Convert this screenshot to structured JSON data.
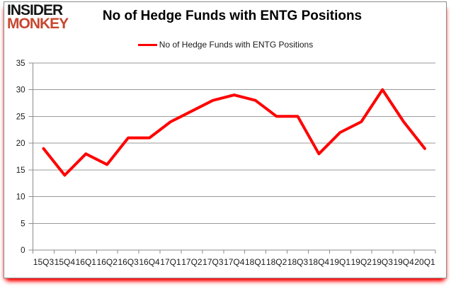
{
  "logo": {
    "line1": "INSIDER",
    "line2": "MONKEY",
    "line1_color": "#141414",
    "line2_color": "#C8472F"
  },
  "title": "No of Hedge Funds with ENTG Positions",
  "legend": {
    "label": "No of Hedge Funds with ENTG Positions",
    "line_color": "#FF0000"
  },
  "frame": {
    "border_color": "#8C8C8C",
    "glow_color": "#FF0000",
    "background": "#FFFFFF"
  },
  "chart_data": {
    "type": "line",
    "title": "No of Hedge Funds with ENTG Positions",
    "categories": [
      "15Q3",
      "15Q4",
      "16Q1",
      "16Q2",
      "16Q3",
      "16Q4",
      "17Q1",
      "17Q2",
      "17Q3",
      "17Q4",
      "18Q1",
      "18Q2",
      "18Q3",
      "18Q4",
      "19Q1",
      "19Q2",
      "19Q3",
      "19Q4",
      "20Q1"
    ],
    "series": [
      {
        "name": "No of Hedge Funds with ENTG Positions",
        "values": [
          19,
          14,
          18,
          16,
          21,
          21,
          24,
          26,
          28,
          29,
          28,
          25,
          25,
          18,
          22,
          24,
          30,
          24,
          19
        ],
        "color": "#FF0000"
      }
    ],
    "xlabel": "",
    "ylabel": "",
    "ylim": [
      0,
      35
    ],
    "yticks": [
      0,
      5,
      10,
      15,
      20,
      25,
      30,
      35
    ],
    "grid": "horizontal",
    "gridline_color": "#9A9A9A",
    "axis_color": "#8C8C8C",
    "tick_label_color": "#1A1A1A",
    "legend_position": "top-center",
    "plot_background": "#FFFFFF"
  }
}
